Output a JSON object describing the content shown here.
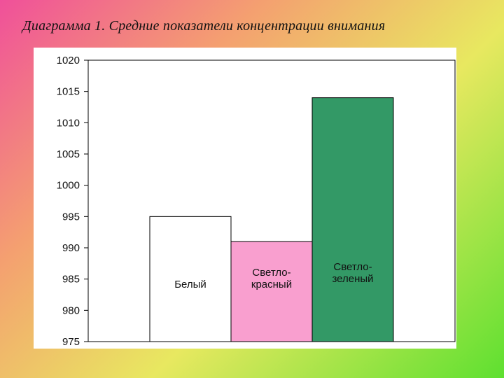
{
  "slide": {
    "title": "Диаграмма 1. Средние показатели концентрации внимания"
  },
  "colors": {
    "background_gradient": [
      "#f0509a",
      "#f4a070",
      "#e8e860",
      "#5ee030"
    ],
    "panel": "#ffffff",
    "axis": "#000000"
  },
  "chart_data": {
    "type": "bar",
    "title": "",
    "xlabel": "",
    "ylabel": "",
    "ylim": [
      975,
      1020
    ],
    "ytick_step": 5,
    "yticks": [
      "1020",
      "1015",
      "1010",
      "1005",
      "1000",
      "995",
      "990",
      "985",
      "980",
      "975"
    ],
    "grid": false,
    "categories": [
      "Белый",
      "Светло-красный",
      "Светло-зеленый"
    ],
    "category_label_lines": [
      [
        "Белый"
      ],
      [
        "Светло-",
        "красный"
      ],
      [
        "Светло-",
        "зеленый"
      ]
    ],
    "values": [
      995,
      991,
      1014
    ],
    "bar_colors": [
      "#ffffff",
      "#f99fcf",
      "#339966"
    ]
  }
}
